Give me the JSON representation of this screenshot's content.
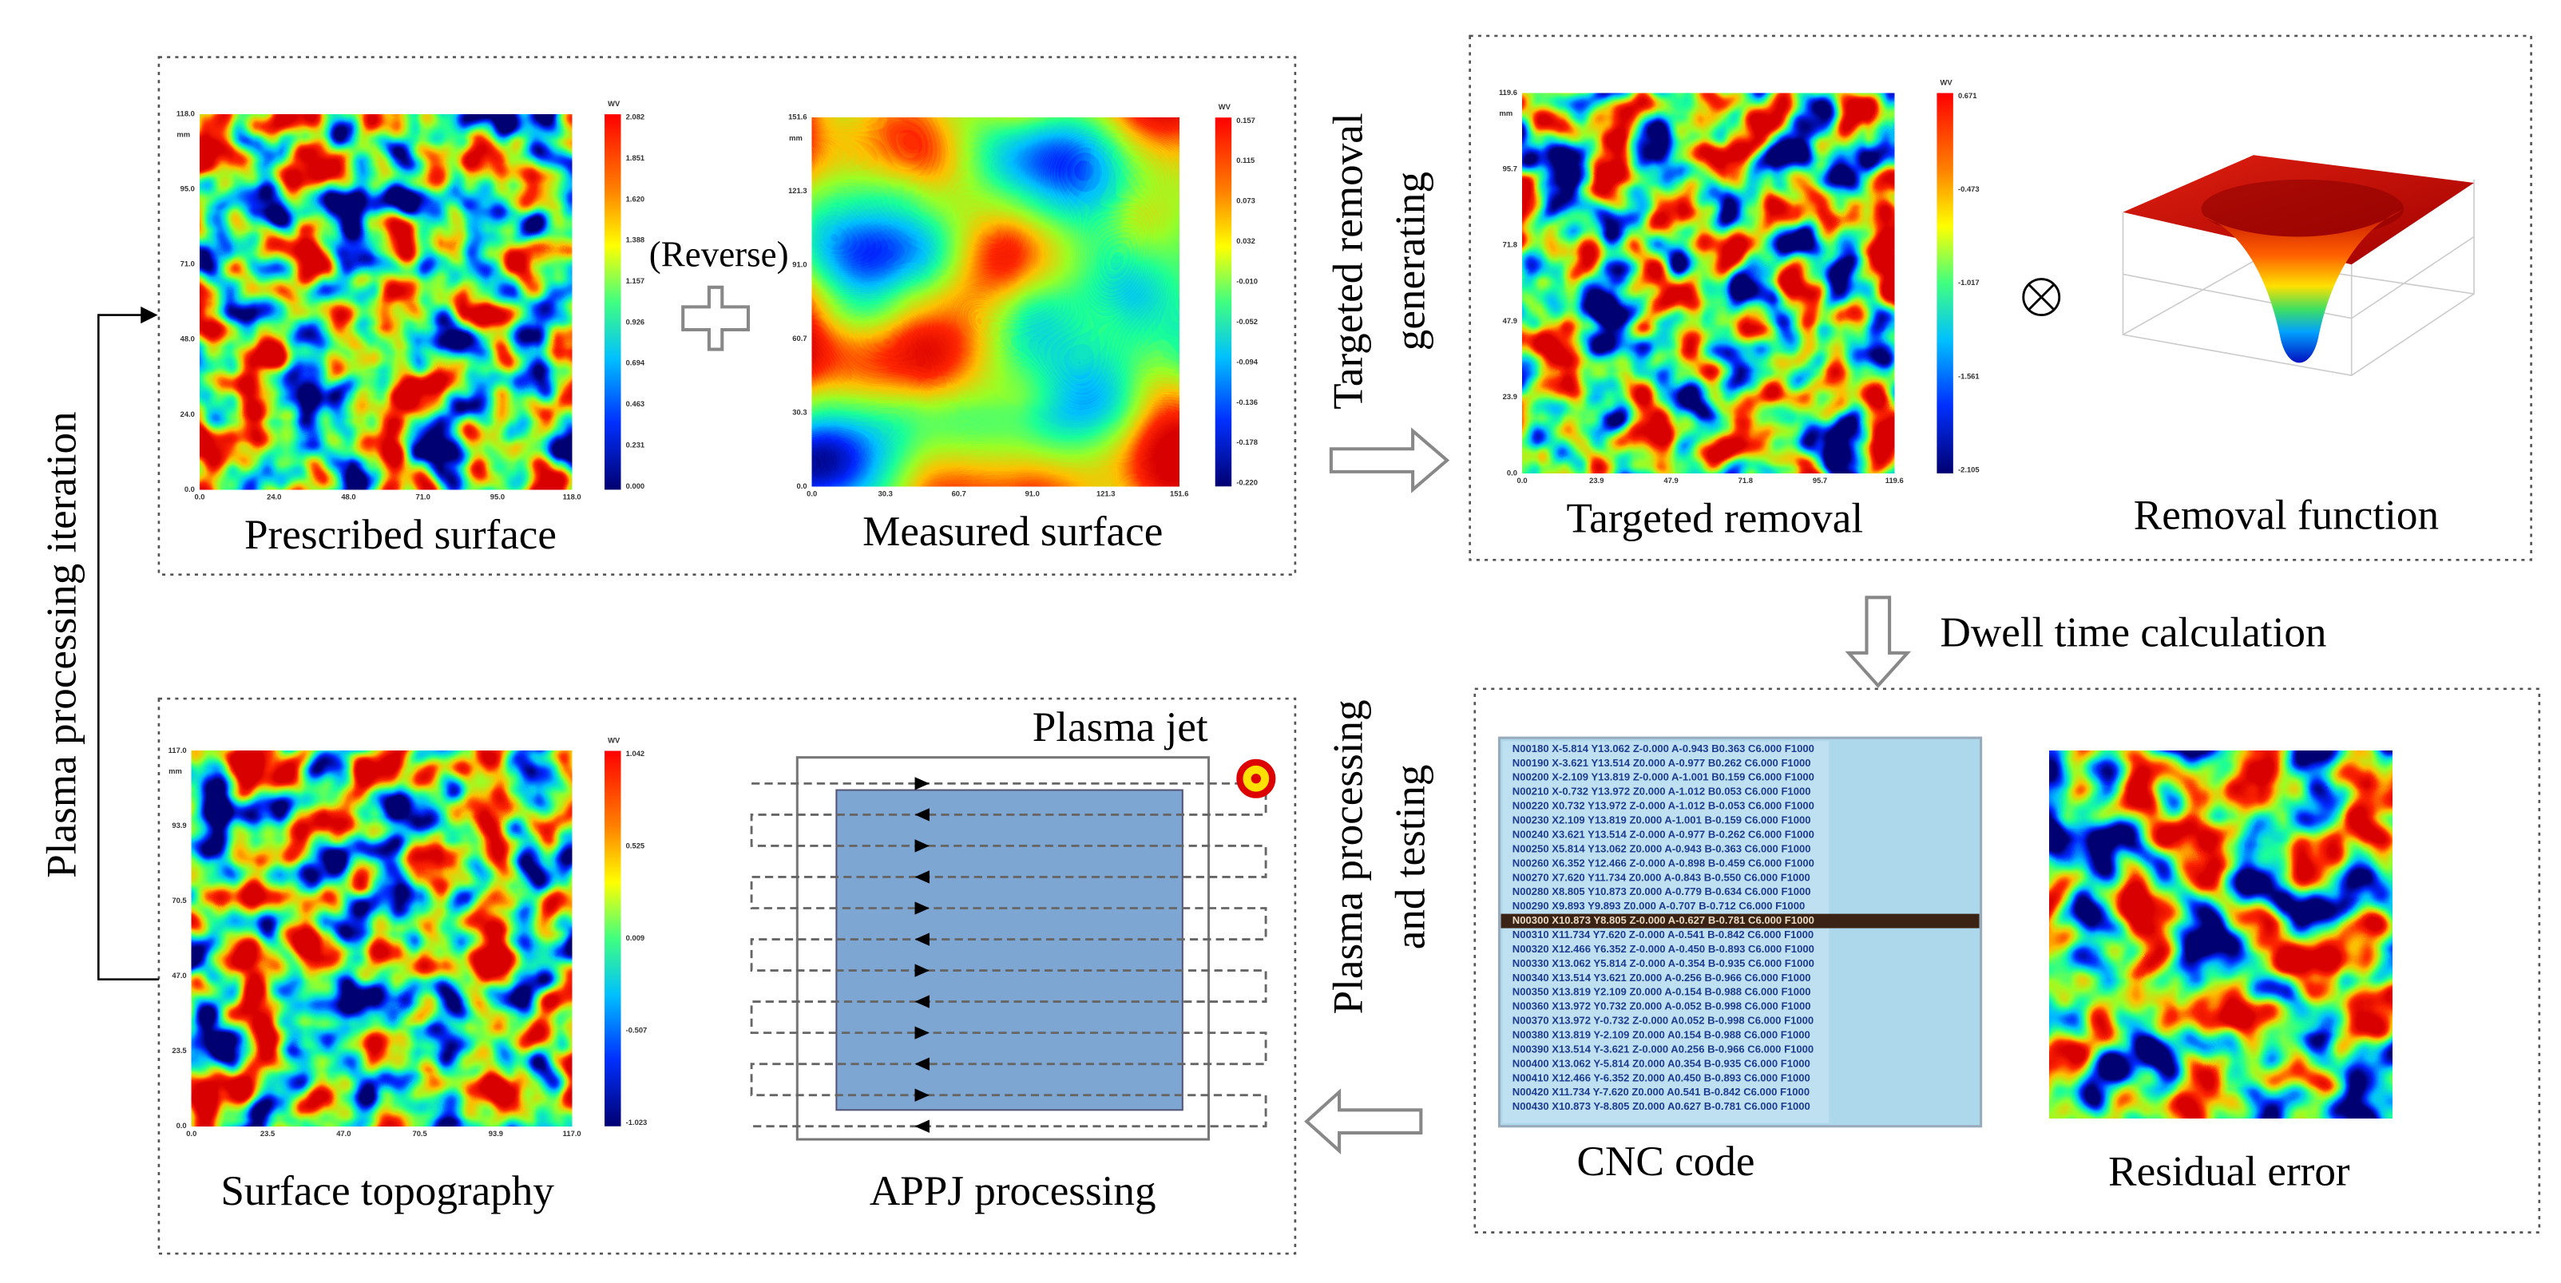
{
  "iteration_label": "Plasma processing  iteration",
  "reverse_label": "(Reverse)",
  "targeted_generating": [
    "Targeted removal",
    "generating"
  ],
  "dwell_label": "Dwell time calculation",
  "processing_testing": [
    "Plasma processing",
    "and testing"
  ],
  "plasma_jet_label": "Plasma jet",
  "removal_function_label": "Removal function",
  "appj_label": "APPJ processing",
  "cnc_label": "CNC code",
  "residual_label": "Residual error",
  "maps": [
    {
      "label": "Prescribed surface",
      "unit": "WV",
      "axis_unit": "mm",
      "colorbar_ticks": [
        "2.082",
        "1.851",
        "1.620",
        "1.388",
        "1.157",
        "0.926",
        "0.694",
        "0.463",
        "0.231",
        "0.000"
      ],
      "x_ticks": [
        "0.0",
        "24.0",
        "48.0",
        "71.0",
        "95.0",
        "118.0"
      ],
      "y_ticks": [
        "118.0",
        "95.0",
        "71.0",
        "48.0",
        "24.0",
        "0.0"
      ]
    },
    {
      "label": "Measured  surface",
      "unit": "WV",
      "axis_unit": "mm",
      "colorbar_ticks": [
        "0.157",
        "0.115",
        "0.073",
        "0.032",
        "-0.010",
        "-0.052",
        "-0.094",
        "-0.136",
        "-0.178",
        "-0.220"
      ],
      "x_ticks": [
        "0.0",
        "30.3",
        "60.7",
        "91.0",
        "121.3",
        "151.6"
      ],
      "y_ticks": [
        "151.6",
        "121.3",
        "91.0",
        "60.7",
        "30.3",
        "0.0"
      ]
    },
    {
      "label": "Targeted removal",
      "unit": "WV",
      "axis_unit": "mm",
      "colorbar_ticks": [
        "0.671",
        "-0.473",
        "-1.017",
        "-1.561",
        "-2.105"
      ],
      "x_ticks": [
        "0.0",
        "23.9",
        "47.9",
        "71.8",
        "95.7",
        "119.6"
      ],
      "y_ticks": [
        "119.6",
        "95.7",
        "71.8",
        "47.9",
        "23.9",
        "0.0"
      ]
    },
    {
      "label": "Surface topography",
      "unit": "WV",
      "axis_unit": "mm",
      "colorbar_ticks": [
        "1.042",
        "0.525",
        "0.009",
        "-0.507",
        "-1.023"
      ],
      "x_ticks": [
        "0.0",
        "23.5",
        "47.0",
        "70.5",
        "93.9",
        "117.0"
      ],
      "y_ticks": [
        "117.0",
        "93.9",
        "70.5",
        "47.0",
        "23.5",
        "0.0"
      ]
    }
  ],
  "cnc_lines": [
    "N00180 X-5.814 Y13.062 Z-0.000 A-0.943 B0.363 C6.000 F1000",
    "N00190 X-3.621 Y13.514 Z0.000 A-0.977 B0.262 C6.000 F1000",
    "N00200 X-2.109 Y13.819 Z-0.000 A-1.001 B0.159 C6.000 F1000",
    "N00210 X-0.732 Y13.972 Z0.000 A-1.012 B0.053 C6.000 F1000",
    "N00220 X0.732 Y13.972 Z-0.000 A-1.012 B-0.053 C6.000 F1000",
    "N00230 X2.109 Y13.819 Z0.000 A-1.001 B-0.159 C6.000 F1000",
    "N00240 X3.621 Y13.514 Z-0.000 A-0.977 B-0.262 C6.000 F1000",
    "N00250 X5.814 Y13.062 Z0.000 A-0.943 B-0.363 C6.000 F1000",
    "N00260 X6.352 Y12.466 Z-0.000 A-0.898 B-0.459 C6.000 F1000",
    "N00270 X7.620 Y11.734 Z0.000 A-0.843 B-0.550 C6.000 F1000",
    "N00280 X8.805 Y10.873 Z0.000 A-0.779 B-0.634 C6.000 F1000",
    "N00290 X9.893 Y9.893 Z0.000 A-0.707 B-0.712 C6.000 F1000",
    "N00300 X10.873 Y8.805 Z-0.000 A-0.627 B-0.781 C6.000 F1000",
    "N00310 X11.734 Y7.620 Z-0.000 A-0.541 B-0.842 C6.000 F1000",
    "N00320 X12.466 Y6.352 Z-0.000 A-0.450 B-0.893 C6.000 F1000",
    "N00330 X13.062 Y5.814 Z-0.000 A-0.354 B-0.935 C6.000 F1000",
    "N00340 X13.514 Y3.621 Z0.000 A-0.256 B-0.966 C6.000 F1000",
    "N00350 X13.819 Y2.109 Z0.000 A-0.154 B-0.988 C6.000 F1000",
    "N00360 X13.972 Y0.732 Z0.000 A-0.052 B-0.998 C6.000 F1000",
    "N00370 X13.972 Y-0.732 Z-0.000 A0.052 B-0.998 C6.000 F1000",
    "N00380 X13.819 Y-2.109 Z0.000 A0.154 B-0.988 C6.000 F1000",
    "N00390 X13.514 Y-3.621 Z-0.000 A0.256 B-0.966 C6.000 F1000",
    "N00400 X13.062 Y-5.814 Z0.000 A0.354 B-0.935 C6.000 F1000",
    "N00410 X12.466 Y-6.352 Z0.000 A0.450 B-0.893 C6.000 F1000",
    "N00420 X11.734 Y-7.620 Z0.000 A0.541 B-0.842 C6.000 F1000",
    "N00430 X10.873 Y-8.805 Z0.000 A0.627 B-0.781 C6.000 F1000"
  ]
}
